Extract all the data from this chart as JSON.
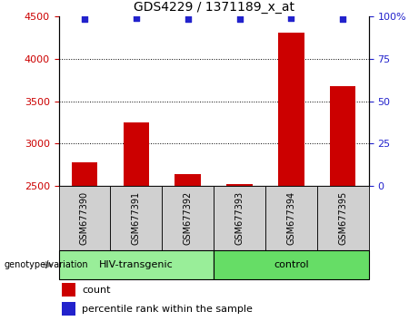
{
  "title": "GDS4229 / 1371189_x_at",
  "samples": [
    "GSM677390",
    "GSM677391",
    "GSM677392",
    "GSM677393",
    "GSM677394",
    "GSM677395"
  ],
  "counts": [
    2780,
    3250,
    2640,
    2520,
    4300,
    3680
  ],
  "percentile_ranks": [
    98,
    99,
    98,
    98,
    99,
    98.5
  ],
  "ylim_left": [
    2500,
    4500
  ],
  "ylim_right": [
    0,
    100
  ],
  "yticks_left": [
    2500,
    3000,
    3500,
    4000,
    4500
  ],
  "yticks_right": [
    0,
    25,
    50,
    75,
    100
  ],
  "bar_color": "#cc0000",
  "dot_color": "#2222cc",
  "bar_width": 0.5,
  "groups": [
    {
      "label": "HIV-transgenic",
      "indices": [
        0,
        1,
        2
      ],
      "color": "#99ee99"
    },
    {
      "label": "control",
      "indices": [
        3,
        4,
        5
      ],
      "color": "#66dd66"
    }
  ],
  "group_label": "genotype/variation",
  "legend_count_label": "count",
  "legend_percentile_label": "percentile rank within the sample",
  "left_tick_color": "#cc0000",
  "right_tick_color": "#2222cc",
  "plot_bg_color": "#ffffff",
  "fig_bg_color": "#ffffff",
  "sample_area_color": "#d0d0d0",
  "dotted_grid_values": [
    3000,
    3500,
    4000
  ]
}
